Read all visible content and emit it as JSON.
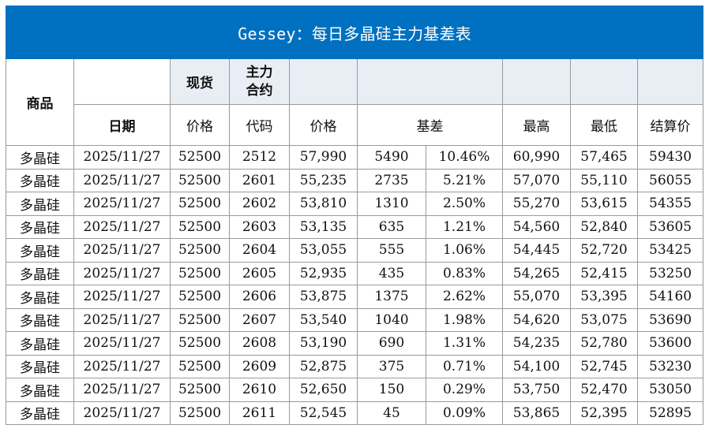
{
  "title": "Gessey：每日多晶硅主力基差表",
  "header": {
    "product": "商品",
    "date": "日期",
    "spot": "现货",
    "spot_price": "价格",
    "contract_line1": "主力",
    "contract_line2": "合约",
    "code": "代码",
    "price": "价格",
    "basis": "基差",
    "high": "最高",
    "low": "最低",
    "settle": "结算价"
  },
  "rows": [
    {
      "product": "多晶硅",
      "date": "2025/11/27",
      "spot": "52500",
      "code": "2512",
      "price": "57,990",
      "basis": "5490",
      "pct": "10.46%",
      "high": "60,990",
      "low": "57,465",
      "settle": "59430"
    },
    {
      "product": "多晶硅",
      "date": "2025/11/27",
      "spot": "52500",
      "code": "2601",
      "price": "55,235",
      "basis": "2735",
      "pct": "5.21%",
      "high": "57,070",
      "low": "55,110",
      "settle": "56055"
    },
    {
      "product": "多晶硅",
      "date": "2025/11/27",
      "spot": "52500",
      "code": "2602",
      "price": "53,810",
      "basis": "1310",
      "pct": "2.50%",
      "high": "55,270",
      "low": "53,615",
      "settle": "54355"
    },
    {
      "product": "多晶硅",
      "date": "2025/11/27",
      "spot": "52500",
      "code": "2603",
      "price": "53,135",
      "basis": "635",
      "pct": "1.21%",
      "high": "54,560",
      "low": "52,840",
      "settle": "53605"
    },
    {
      "product": "多晶硅",
      "date": "2025/11/27",
      "spot": "52500",
      "code": "2604",
      "price": "53,055",
      "basis": "555",
      "pct": "1.06%",
      "high": "54,445",
      "low": "52,720",
      "settle": "53425"
    },
    {
      "product": "多晶硅",
      "date": "2025/11/27",
      "spot": "52500",
      "code": "2605",
      "price": "52,935",
      "basis": "435",
      "pct": "0.83%",
      "high": "54,265",
      "low": "52,415",
      "settle": "53250"
    },
    {
      "product": "多晶硅",
      "date": "2025/11/27",
      "spot": "52500",
      "code": "2606",
      "price": "53,875",
      "basis": "1375",
      "pct": "2.62%",
      "high": "55,070",
      "low": "53,395",
      "settle": "54160"
    },
    {
      "product": "多晶硅",
      "date": "2025/11/27",
      "spot": "52500",
      "code": "2607",
      "price": "53,540",
      "basis": "1040",
      "pct": "1.98%",
      "high": "54,620",
      "low": "53,075",
      "settle": "53690"
    },
    {
      "product": "多晶硅",
      "date": "2025/11/27",
      "spot": "52500",
      "code": "2608",
      "price": "53,190",
      "basis": "690",
      "pct": "1.31%",
      "high": "54,235",
      "low": "52,780",
      "settle": "53600"
    },
    {
      "product": "多晶硅",
      "date": "2025/11/27",
      "spot": "52500",
      "code": "2609",
      "price": "52,875",
      "basis": "375",
      "pct": "0.71%",
      "high": "54,100",
      "low": "52,745",
      "settle": "53230"
    },
    {
      "product": "多晶硅",
      "date": "2025/11/27",
      "spot": "52500",
      "code": "2610",
      "price": "52,650",
      "basis": "150",
      "pct": "0.29%",
      "high": "53,750",
      "low": "52,470",
      "settle": "53050"
    },
    {
      "product": "多晶硅",
      "date": "2025/11/27",
      "spot": "52500",
      "code": "2611",
      "price": "52,545",
      "basis": "45",
      "pct": "0.09%",
      "high": "53,865",
      "low": "52,395",
      "settle": "52895"
    }
  ]
}
